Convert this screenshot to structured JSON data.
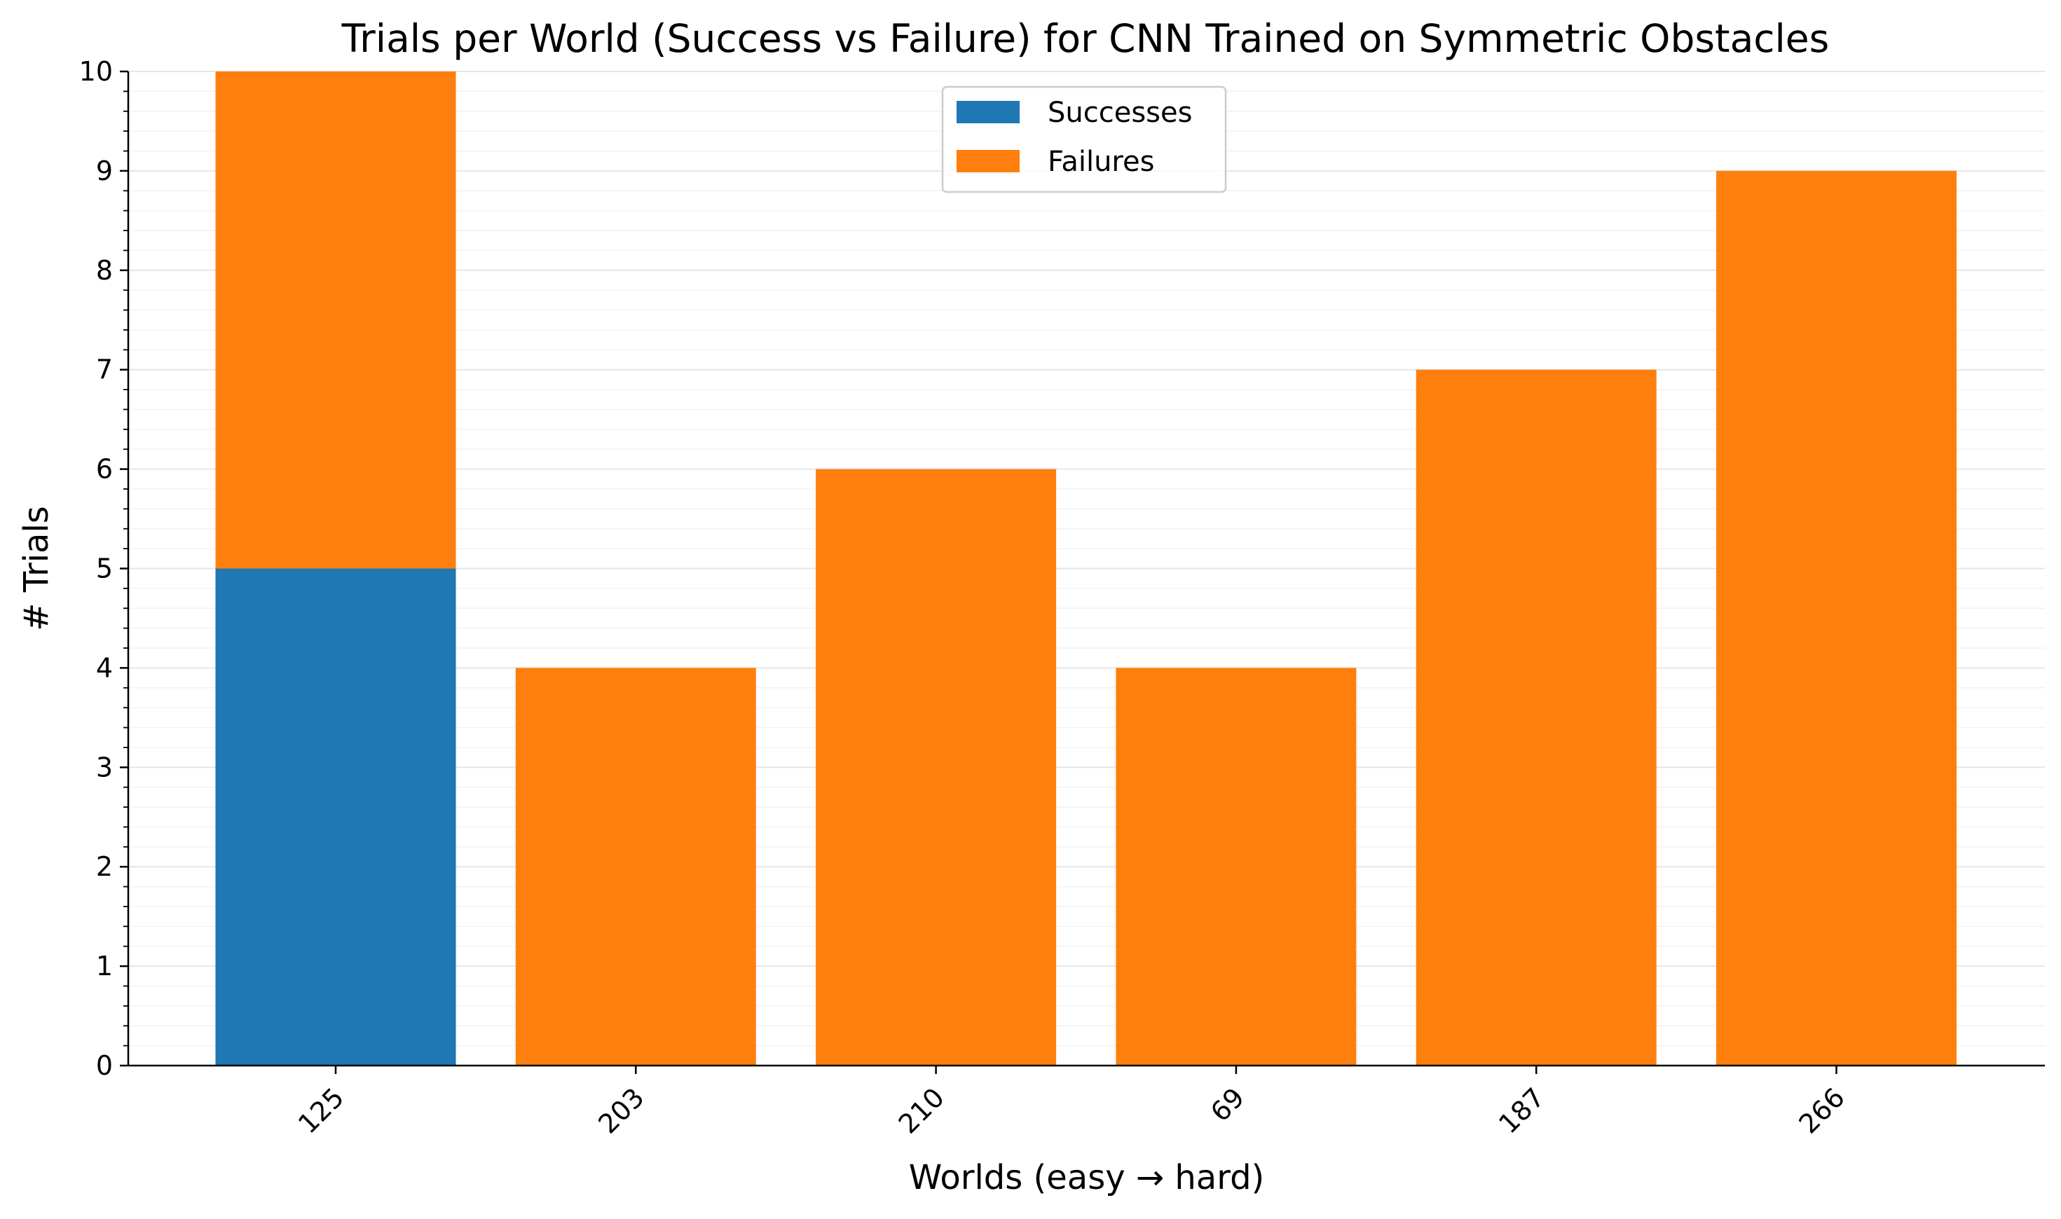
{
  "chart_data": {
    "type": "bar",
    "stacked": true,
    "title": "Trials per World (Success vs Failure) for CNN Trained on Symmetric Obstacles",
    "xlabel": "Worlds (easy → hard)",
    "ylabel": "# Trials",
    "categories": [
      "125",
      "203",
      "210",
      "69",
      "187",
      "266"
    ],
    "series": [
      {
        "name": "Successes",
        "color": "#1f77b4",
        "values": [
          5,
          0,
          0,
          0,
          0,
          0
        ]
      },
      {
        "name": "Failures",
        "color": "#ff7f0e",
        "values": [
          5,
          4,
          6,
          4,
          7,
          9
        ]
      }
    ],
    "ylim": [
      0,
      10
    ],
    "yticks": [
      0,
      1,
      2,
      3,
      4,
      5,
      6,
      7,
      8,
      9,
      10
    ],
    "y_minor_step": 0.2,
    "grid": true,
    "legend_position": "top-center",
    "x_tick_rotation": -45
  }
}
